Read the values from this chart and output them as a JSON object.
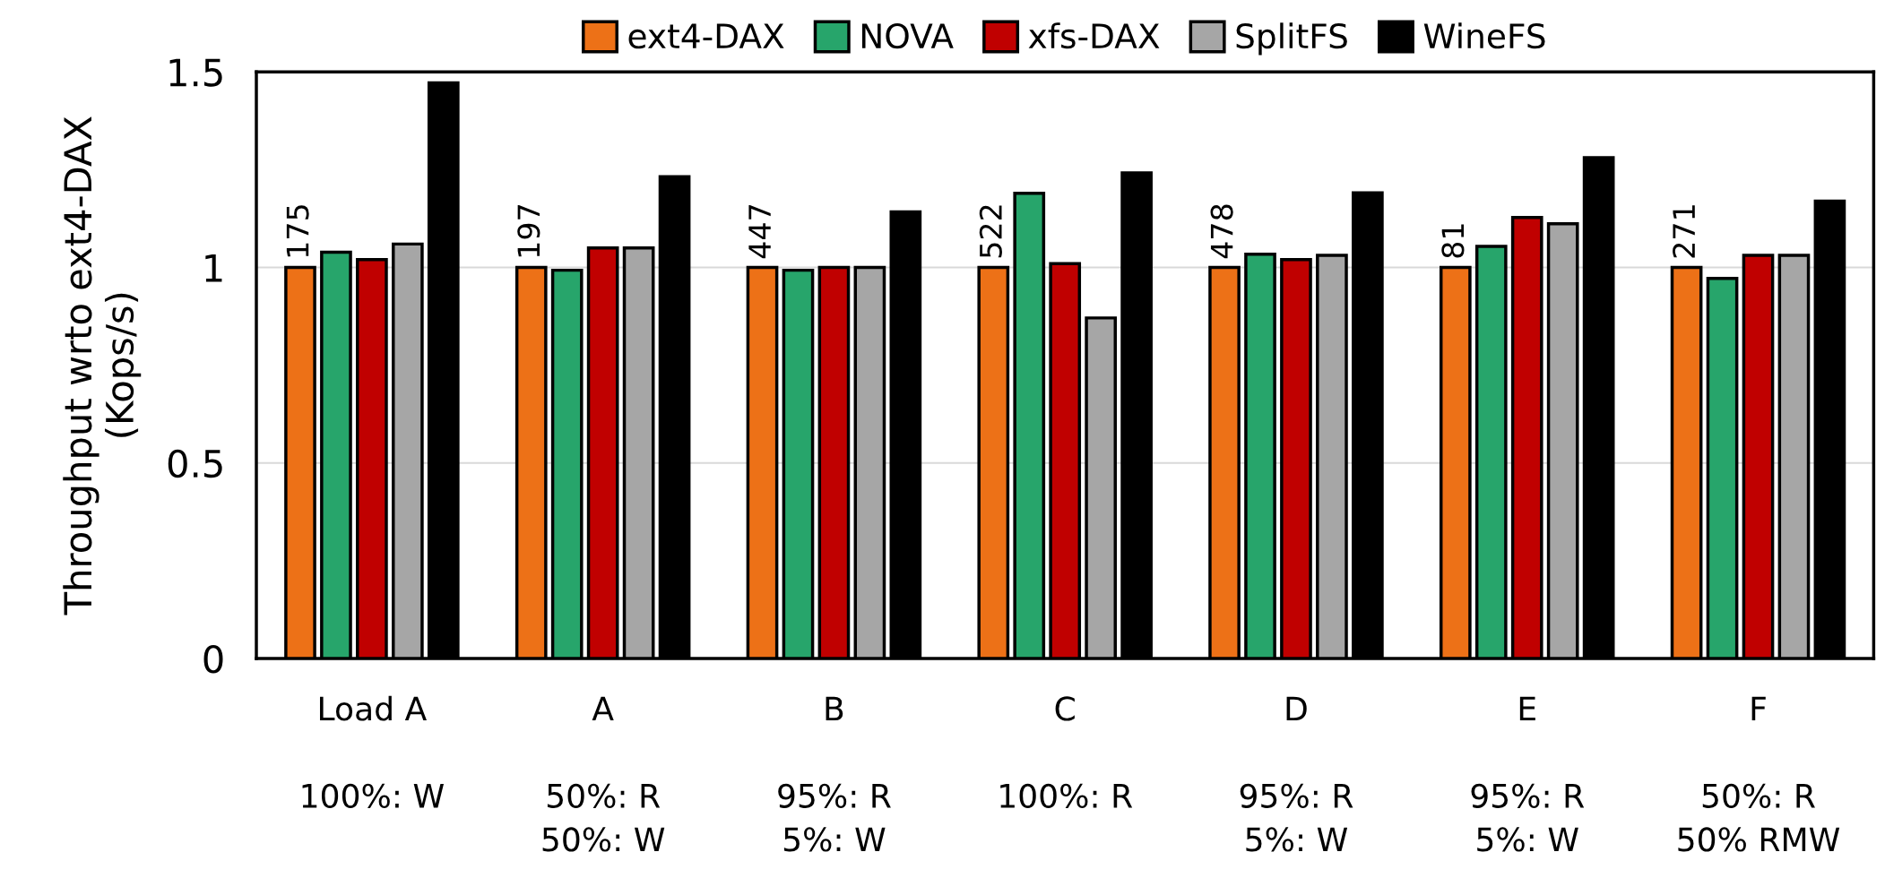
{
  "chart_data": {
    "type": "bar",
    "ylabel": "Throughput wrto ext4-DAX\n(Kops/s)",
    "categories": [
      "Load A\n\n100%: W",
      "A\n\n50%: R\n50%: W",
      "B\n\n95%: R\n5%: W",
      "C\n\n100%: R",
      "D\n\n95%: R\n5%: W",
      "E\n\n95%: R\n5%: W",
      "F\n\n50%: R\n50% RMW"
    ],
    "series": [
      {
        "name": "ext4-DAX",
        "color": "#ed7117",
        "values": [
          1,
          1,
          1,
          1,
          1,
          1,
          1
        ]
      },
      {
        "name": "NOVA",
        "color": "#27a56b",
        "values": [
          1.039,
          0.993,
          0.993,
          1.19,
          1.034,
          1.054,
          0.972
        ]
      },
      {
        "name": "xfs-DAX",
        "color": "#c00000",
        "values": [
          1.02,
          1.05,
          1.0,
          1.01,
          1.02,
          1.128,
          1.031
        ]
      },
      {
        "name": "SplitFS",
        "color": "#a6a6a6",
        "values": [
          1.06,
          1.05,
          1.0,
          0.871,
          1.031,
          1.112,
          1.031
        ]
      },
      {
        "name": "WineFS",
        "color": "#000000",
        "values": [
          1.472,
          1.232,
          1.142,
          1.242,
          1.191,
          1.281,
          1.17
        ]
      }
    ],
    "annotations": [
      "175",
      "197",
      "447",
      "522",
      "478",
      "81",
      "271"
    ],
    "ylim": [
      0,
      1.5
    ],
    "yticks": [
      0,
      0.5,
      1,
      1.5
    ],
    "grid": "y",
    "legend": "top"
  }
}
